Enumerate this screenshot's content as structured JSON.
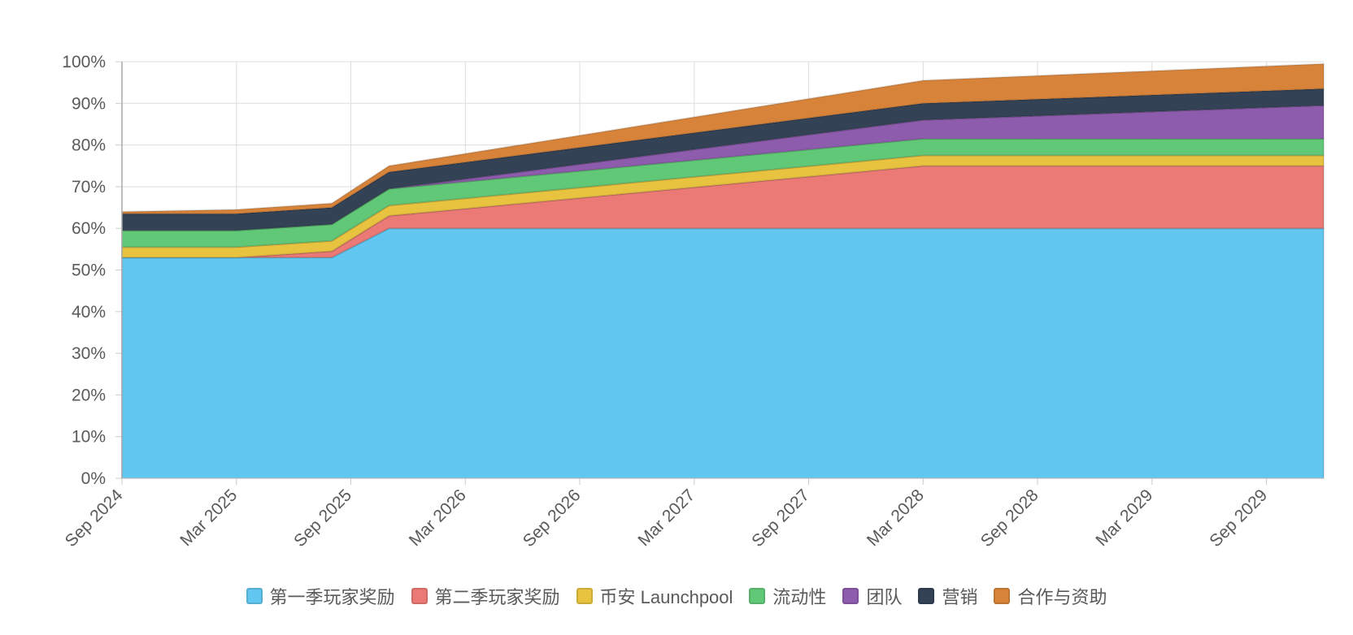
{
  "chart_data": {
    "type": "area",
    "stacked": true,
    "x": [
      "2024-09",
      "2025-03",
      "2025-08",
      "2025-11",
      "2028-03",
      "2029-12"
    ],
    "series": [
      {
        "name": "第一季玩家奖励",
        "color": "#61C6F0",
        "values": [
          53,
          53,
          53,
          60,
          60,
          60
        ]
      },
      {
        "name": "第二季玩家奖励",
        "color": "#EB7A76",
        "values": [
          0,
          0,
          1.5,
          3,
          15,
          15
        ]
      },
      {
        "name": "币安 Launchpool",
        "color": "#E8C33F",
        "values": [
          2.5,
          2.5,
          2.5,
          2.5,
          2.5,
          2.5
        ]
      },
      {
        "name": "流动性",
        "color": "#61C878",
        "values": [
          4,
          4,
          4,
          4,
          4,
          4
        ]
      },
      {
        "name": "团队",
        "color": "#8E5CAD",
        "values": [
          0,
          0,
          0,
          0,
          4.5,
          8
        ]
      },
      {
        "name": "营销",
        "color": "#344256",
        "values": [
          4,
          4,
          4,
          4,
          4,
          4
        ]
      },
      {
        "name": "合作与资助",
        "color": "#D8833A",
        "values": [
          0.5,
          1,
          1,
          1.5,
          5.5,
          6
        ]
      }
    ],
    "x_tick_labels": [
      "Sep 2024",
      "Mar 2025",
      "Sep 2025",
      "Mar 2026",
      "Sep 2026",
      "Mar 2027",
      "Sep 2027",
      "Mar 2028",
      "Sep 2028",
      "Mar 2029",
      "Sep 2029"
    ],
    "y_tick_labels": [
      "0%",
      "10%",
      "20%",
      "30%",
      "40%",
      "50%",
      "60%",
      "70%",
      "80%",
      "90%",
      "100%"
    ],
    "ylim": [
      0,
      100
    ],
    "xlim": [
      "2024-09",
      "2029-12"
    ],
    "grid": true,
    "legend_position": "bottom",
    "title": "",
    "xlabel": "",
    "ylabel": ""
  }
}
